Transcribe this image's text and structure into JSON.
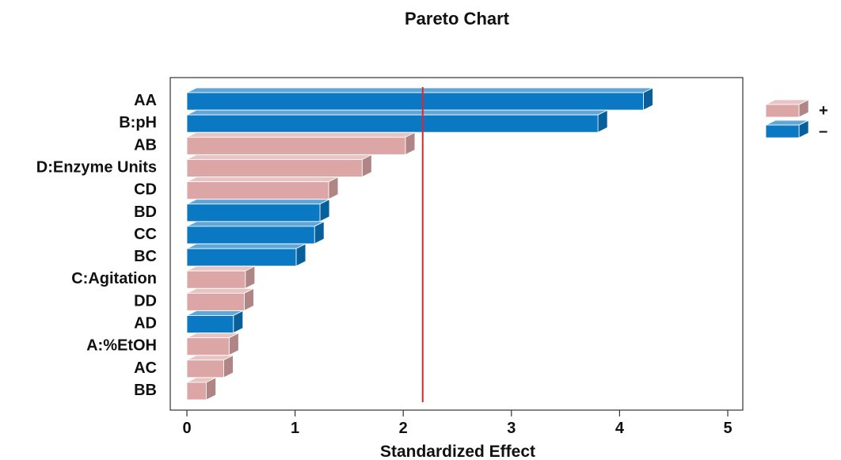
{
  "chart_data": {
    "type": "bar",
    "orientation": "horizontal",
    "title": "Pareto Chart",
    "xlabel": "Standardized Effect",
    "ylabel": "",
    "xlim": [
      0,
      5
    ],
    "xticks": [
      "0",
      "1",
      "2",
      "3",
      "4",
      "5"
    ],
    "grid": false,
    "reference_line": {
      "value": 2.18,
      "color": "#e8252b"
    },
    "categories": [
      "AA",
      "B:pH",
      "AB",
      "D:Enzyme Units",
      "CD",
      "BD",
      "CC",
      "BC",
      "C:Agitation",
      "DD",
      "AD",
      "A:%EtOH",
      "AC",
      "BB"
    ],
    "values": [
      4.22,
      3.8,
      2.02,
      1.62,
      1.31,
      1.23,
      1.18,
      1.01,
      0.54,
      0.53,
      0.43,
      0.39,
      0.34,
      0.18
    ],
    "signs": [
      "-",
      "-",
      "+",
      "+",
      "+",
      "-",
      "-",
      "-",
      "+",
      "+",
      "-",
      "+",
      "+",
      "+"
    ],
    "legend": {
      "position": "right",
      "entries": [
        {
          "label": "+",
          "color": "#dca6a6"
        },
        {
          "label": "–",
          "color": "#0a78c2"
        }
      ]
    },
    "colors": {
      "positive": "#dca6a6",
      "negative": "#0a78c2"
    }
  }
}
